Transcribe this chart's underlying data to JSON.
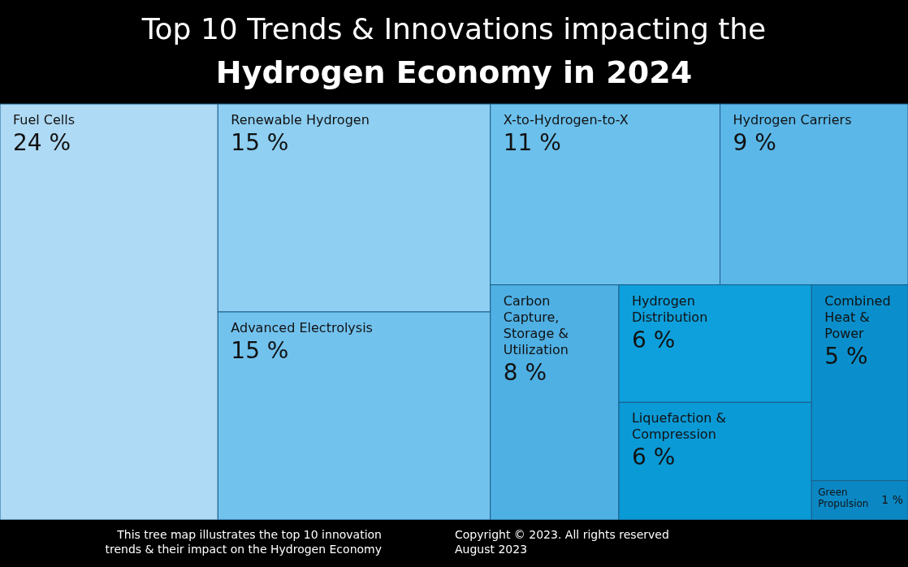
{
  "chart_data": {
    "type": "other",
    "title": "Top 10 Trends & Innovations impacting the",
    "subtitle": "Hydrogen Economy in 2024",
    "categories": [
      "Fuel Cells",
      "Renewable Hydrogen",
      "Advanced Electrolysis",
      "X-to-Hydrogen-to-X",
      "Hydrogen Carriers",
      "Carbon Capture, Storage & Utilization",
      "Hydrogen Distribution",
      "Liquefaction & Compression",
      "Combined Heat & Power",
      "Green Propulsion"
    ],
    "values": [
      24,
      15,
      15,
      11,
      9,
      8,
      6,
      6,
      5,
      1
    ],
    "value_labels": [
      "24 %",
      "15 %",
      "15 %",
      "11 %",
      "9 %",
      "8 %",
      "6 %",
      "6 %",
      "5 %",
      "1 %"
    ],
    "colors": [
      "#afdaf5",
      "#8ecff2",
      "#72c2ee",
      "#6cc0ec",
      "#5bb7e8",
      "#4fb0e4",
      "#0ea0dc",
      "#0a9ad6",
      "#0a8fcc",
      "#0b88c4"
    ],
    "annotations": [
      "This tree map illustrates the top 10 innovation trends & their impact on the Hydrogen Economy",
      "Copyright © 2023. All rights reserved",
      "August 2023"
    ]
  }
}
